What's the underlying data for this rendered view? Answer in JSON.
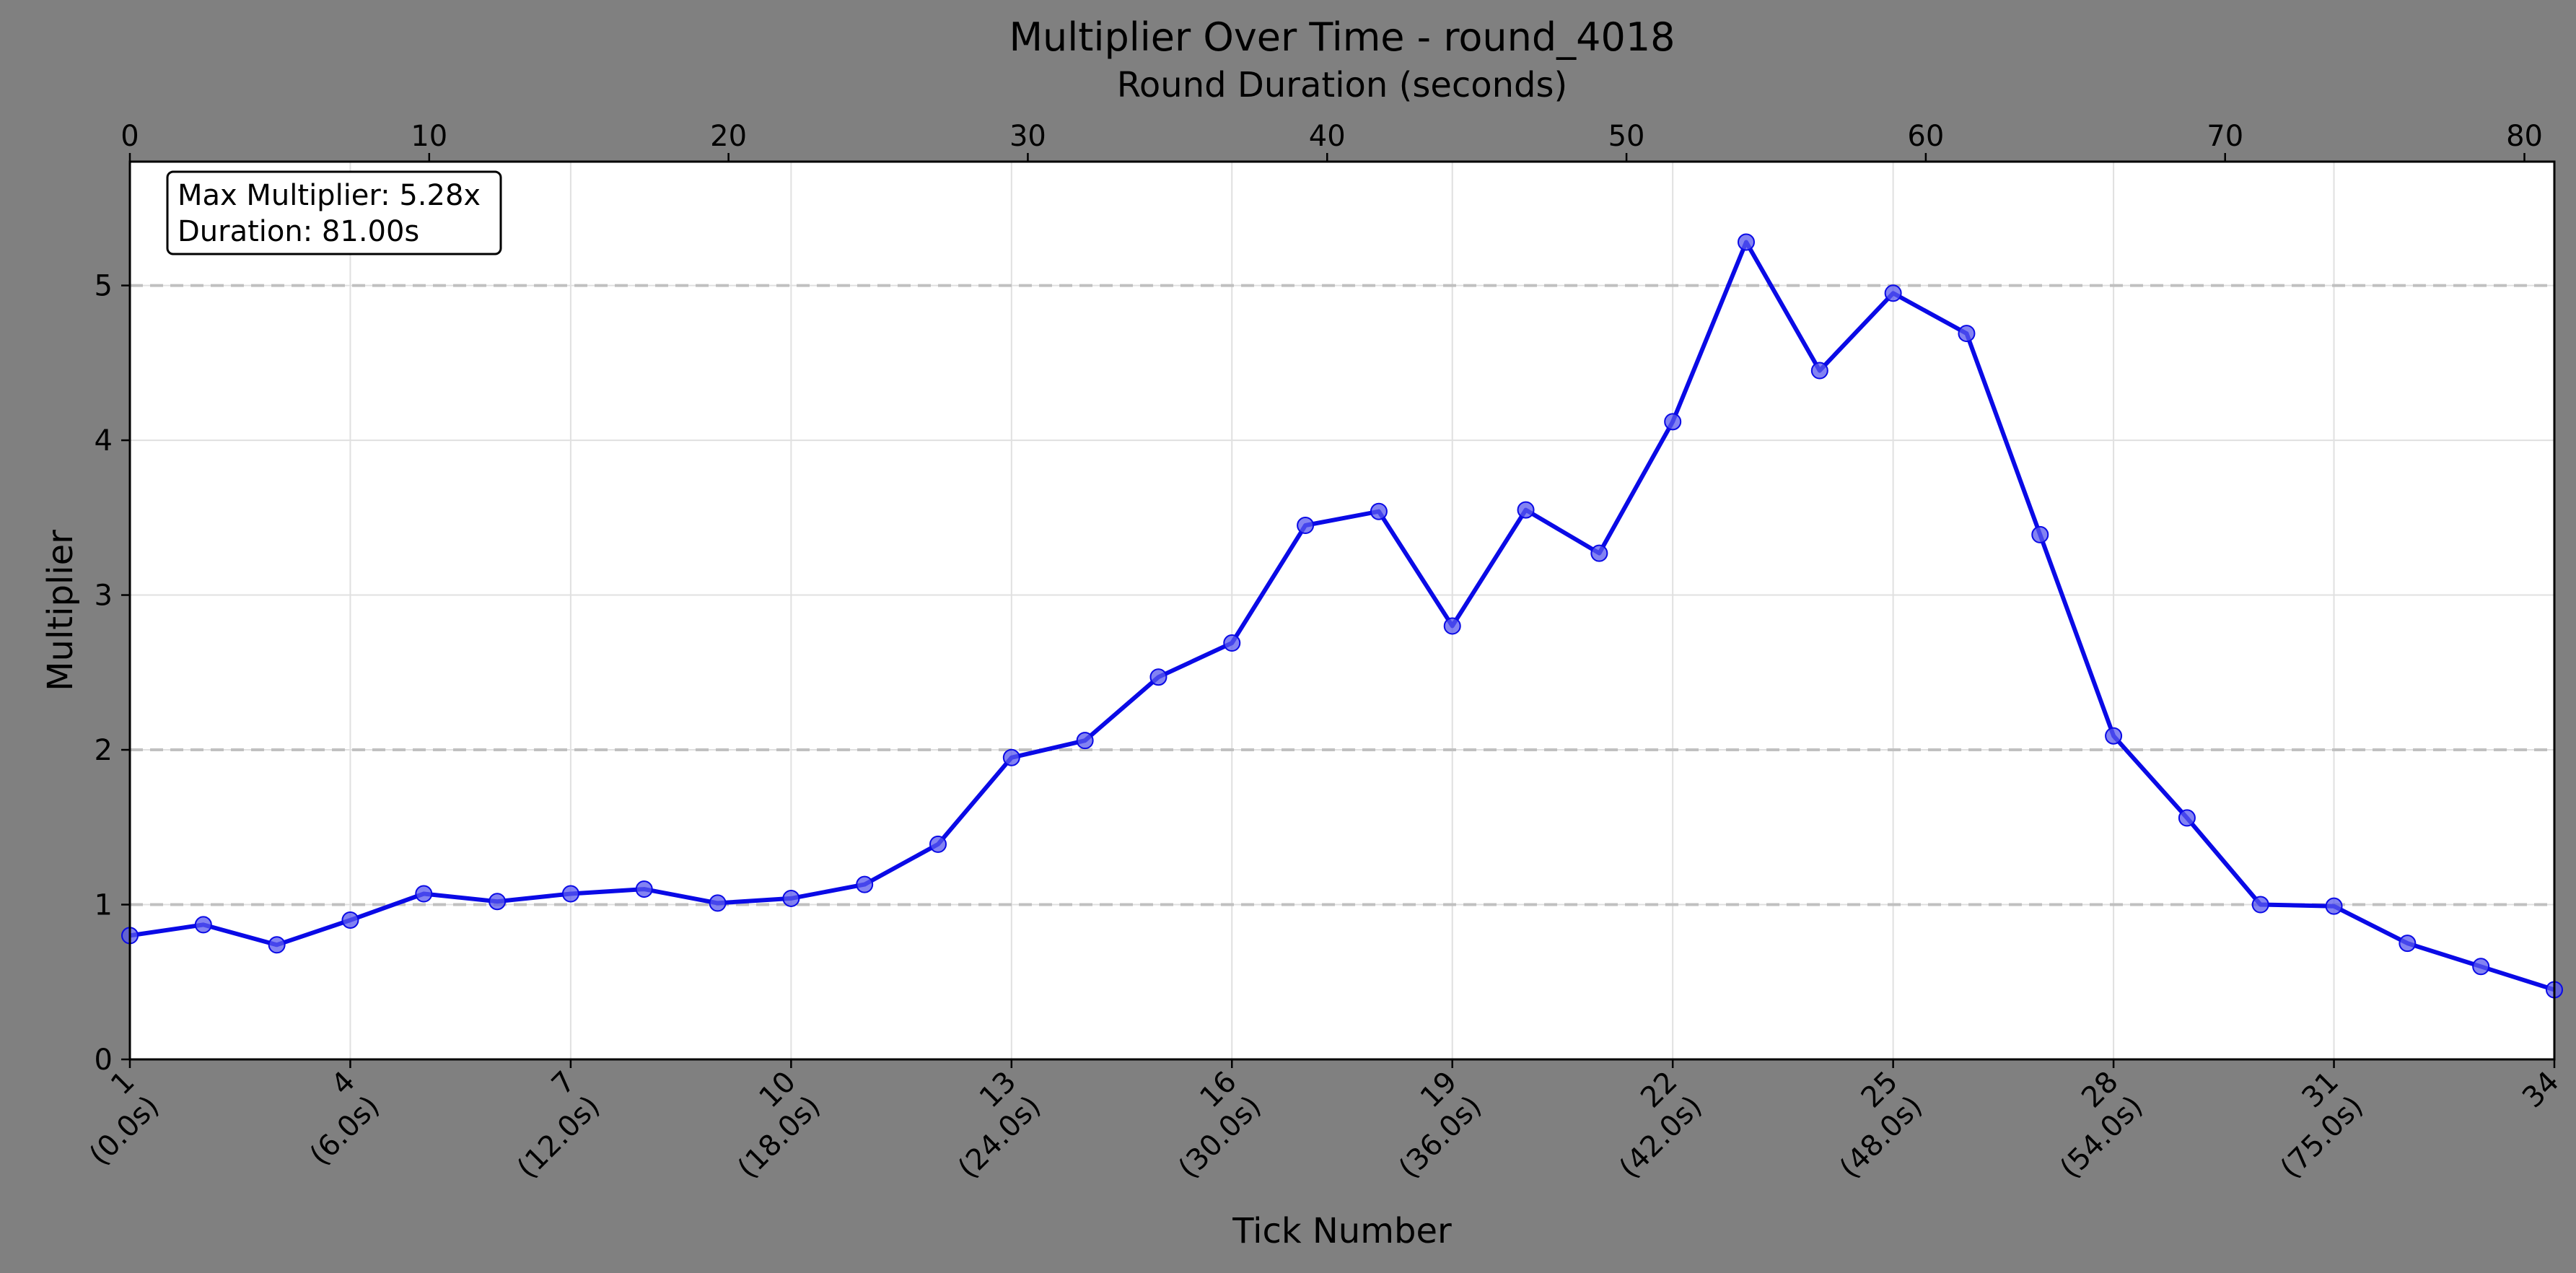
{
  "chart_data": {
    "type": "line",
    "title": "Multiplier Over Time - round_4018",
    "xlabel": "Tick Number",
    "ylabel": "Multiplier",
    "x2label": "Round Duration (seconds)",
    "x": [
      1,
      2,
      3,
      4,
      5,
      6,
      7,
      8,
      9,
      10,
      11,
      12,
      13,
      14,
      15,
      16,
      17,
      18,
      19,
      20,
      21,
      22,
      23,
      24,
      25,
      26,
      27,
      28,
      29,
      30,
      31,
      32,
      33,
      34
    ],
    "series": [
      {
        "values": [
          0.8,
          0.87,
          0.74,
          0.9,
          1.07,
          1.02,
          1.07,
          1.1,
          1.01,
          1.04,
          1.13,
          1.39,
          1.95,
          2.06,
          2.47,
          2.69,
          3.45,
          3.54,
          2.8,
          3.55,
          3.27,
          4.12,
          5.28,
          4.45,
          4.95,
          4.69,
          3.39,
          2.09,
          1.56,
          1.0,
          0.99,
          0.75,
          0.6,
          0.45
        ],
        "color": "#0a0ae6",
        "marker_color": "#5a5aee"
      }
    ],
    "xlim": [
      1,
      34
    ],
    "ylim": [
      0,
      5.8
    ],
    "x2lim": [
      0,
      81
    ],
    "yticks": [
      0,
      1,
      2,
      3,
      4,
      5
    ],
    "x2ticks": [
      0,
      10,
      20,
      30,
      40,
      50,
      60,
      70,
      80
    ],
    "xticks": [
      {
        "tick": 1,
        "label": "1",
        "sublabel": "(0.0s)"
      },
      {
        "tick": 4,
        "label": "4",
        "sublabel": "(6.0s)"
      },
      {
        "tick": 7,
        "label": "7",
        "sublabel": "(12.0s)"
      },
      {
        "tick": 10,
        "label": "10",
        "sublabel": "(18.0s)"
      },
      {
        "tick": 13,
        "label": "13",
        "sublabel": "(24.0s)"
      },
      {
        "tick": 16,
        "label": "16",
        "sublabel": "(30.0s)"
      },
      {
        "tick": 19,
        "label": "19",
        "sublabel": "(36.0s)"
      },
      {
        "tick": 22,
        "label": "22",
        "sublabel": "(42.0s)"
      },
      {
        "tick": 25,
        "label": "25",
        "sublabel": "(48.0s)"
      },
      {
        "tick": 28,
        "label": "28",
        "sublabel": "(54.0s)"
      },
      {
        "tick": 31,
        "label": "31",
        "sublabel": "(75.0s)"
      },
      {
        "tick": 34,
        "label": "34",
        "sublabel": ""
      }
    ],
    "reference_lines": [
      1,
      2,
      5
    ],
    "grid": true,
    "annotation": {
      "lines": [
        "Max Multiplier: 5.28x",
        "Duration: 81.00s"
      ],
      "placement": "top-left"
    },
    "colors": {
      "background": "#808080",
      "plot_background": "#ffffff",
      "grid": "#e0e0e0",
      "reference_line": "#c0c0c0"
    }
  }
}
